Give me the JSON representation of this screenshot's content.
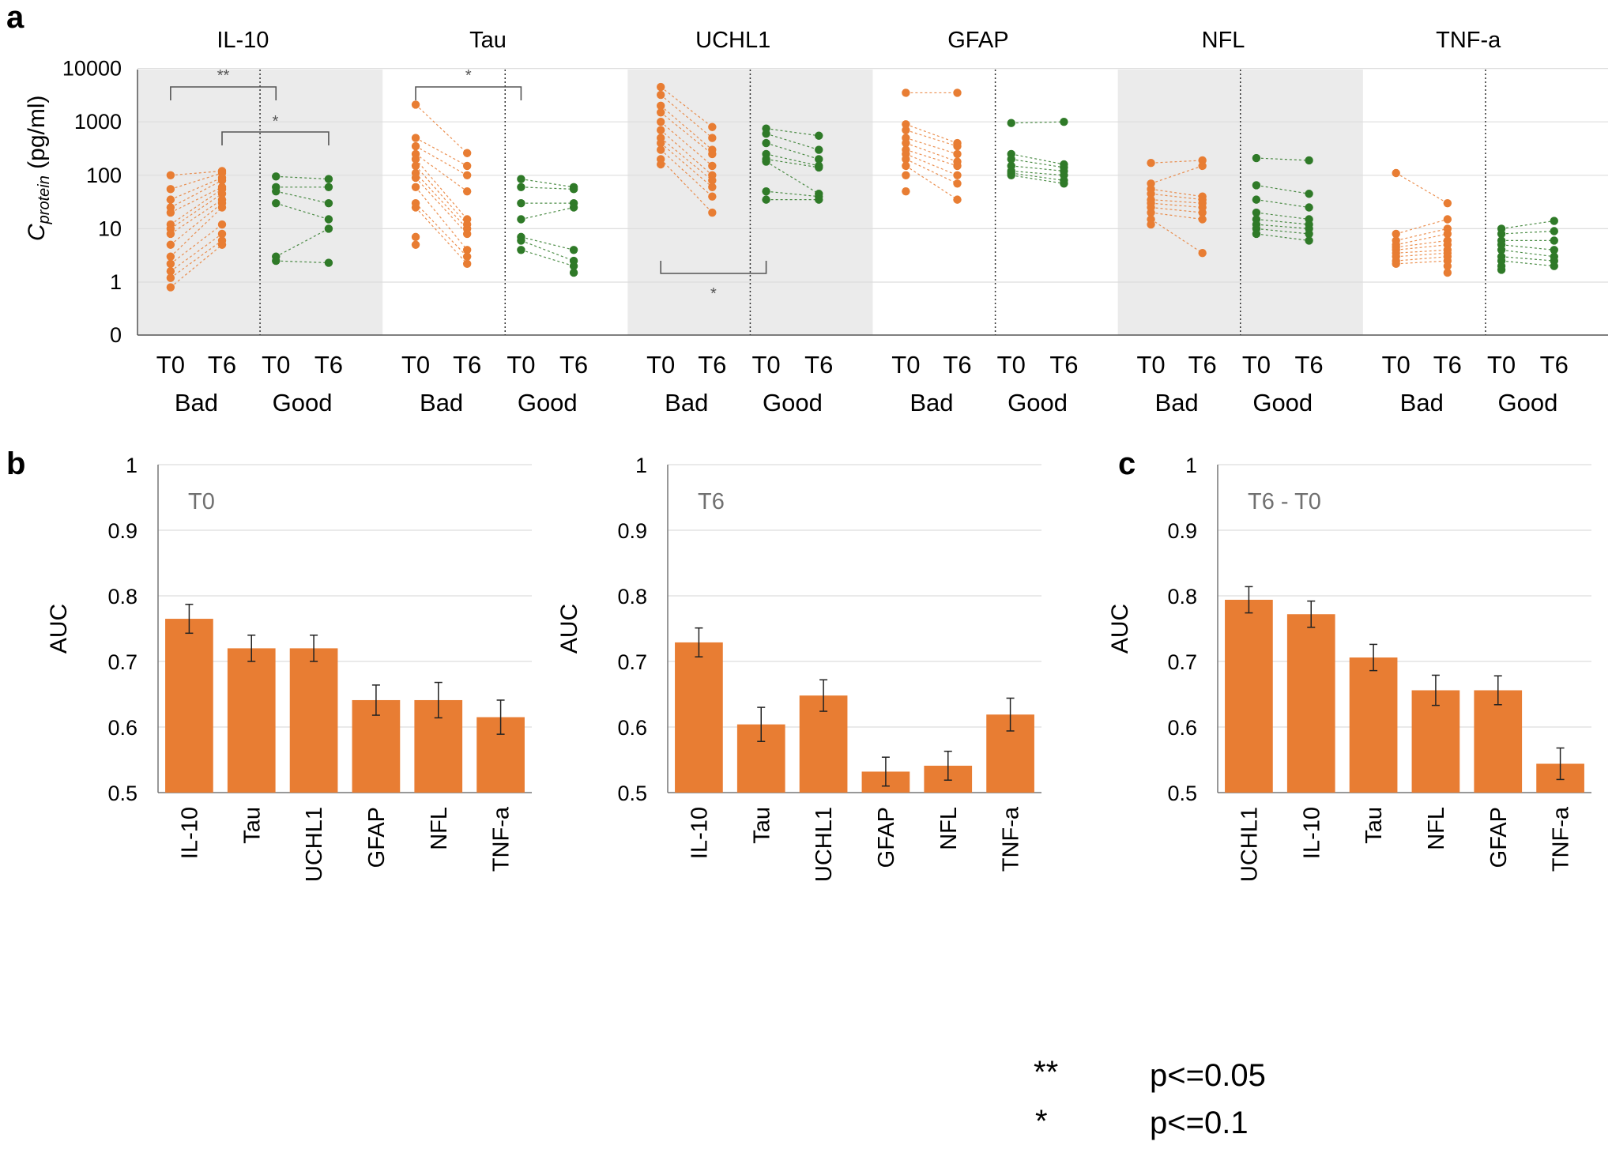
{
  "colors": {
    "bad": "#e87d33",
    "good": "#2f7a28",
    "bar": "#e87d33",
    "shade": "#ebebeb",
    "grid": "#dddddd"
  },
  "panel_letters": {
    "a": "a",
    "b": "b",
    "c": "c"
  },
  "legend": [
    {
      "symbol": "**",
      "text": "p<=0.05"
    },
    {
      "symbol": "*",
      "text": "p<=0.1"
    }
  ],
  "chart_data": [
    {
      "id": "a",
      "type": "scatter",
      "description_note": "paired points per marker, log scale",
      "ylabel": "C_protein (pg/ml)",
      "ylabel_main": "C",
      "ylabel_sub": "protein",
      "ylabel_rest": " (pg/ml)",
      "y_scale": "log",
      "y_ticks": [
        "0",
        "1",
        "10",
        "100",
        "1000",
        "10000"
      ],
      "time_labels": [
        "T0",
        "T6",
        "T0",
        "T6"
      ],
      "group_labels": [
        "Bad",
        "Good"
      ],
      "panels": [
        {
          "title": "IL-10",
          "shaded": true,
          "bad_t0": [
            100,
            55,
            35,
            25,
            20,
            12,
            10,
            8,
            5,
            3,
            2.2,
            1.6,
            1.2,
            0.8
          ],
          "bad_t6": [
            120,
            110,
            90,
            80,
            60,
            55,
            45,
            35,
            30,
            25,
            12,
            8,
            6,
            5
          ],
          "good_t0": [
            95,
            60,
            50,
            30,
            3,
            2.5
          ],
          "good_t6": [
            85,
            60,
            30,
            15,
            10,
            2.3
          ],
          "sig_marks": [
            {
              "label": "**",
              "from": "bad_t0",
              "to": "good_t0",
              "pos": "top"
            },
            {
              "label": "*",
              "from": "bad_t6",
              "to": "good_t6",
              "pos": "top2"
            }
          ]
        },
        {
          "title": "Tau",
          "shaded": false,
          "bad_t0": [
            2100,
            500,
            350,
            250,
            200,
            150,
            110,
            90,
            60,
            30,
            25,
            7,
            5
          ],
          "bad_t6": [
            260,
            150,
            100,
            50,
            15,
            12,
            10,
            8,
            4,
            3,
            2.2
          ],
          "good_t0": [
            85,
            60,
            30,
            15,
            7,
            6,
            4
          ],
          "good_t6": [
            60,
            55,
            30,
            25,
            4,
            2.5,
            2,
            1.5
          ],
          "sig_marks": [
            {
              "label": "*",
              "from": "bad_t0",
              "to": "good_t0",
              "pos": "top"
            }
          ]
        },
        {
          "title": "UCHL1",
          "shaded": true,
          "bad_t0": [
            4500,
            3200,
            2000,
            1500,
            1000,
            700,
            500,
            400,
            300,
            200,
            160
          ],
          "bad_t6": [
            800,
            500,
            300,
            250,
            150,
            100,
            80,
            60,
            40,
            20
          ],
          "good_t0": [
            750,
            600,
            400,
            250,
            200,
            180,
            50,
            35
          ],
          "good_t6": [
            550,
            300,
            200,
            150,
            140,
            45,
            40,
            35
          ],
          "sig_marks": [
            {
              "label": "*",
              "from": "bad_t0",
              "to": "good_t0",
              "pos": "bottom"
            }
          ]
        },
        {
          "title": "GFAP",
          "shaded": false,
          "bad_t0": [
            3500,
            900,
            700,
            500,
            400,
            300,
            250,
            200,
            150,
            100,
            50
          ],
          "bad_t6": [
            3500,
            400,
            350,
            250,
            180,
            150,
            100,
            70,
            35
          ],
          "good_t0": [
            950,
            250,
            200,
            150,
            120,
            110,
            100
          ],
          "good_t6": [
            1000,
            160,
            140,
            120,
            100,
            80,
            70
          ],
          "sig_marks": []
        },
        {
          "title": "NFL",
          "shaded": true,
          "bad_t0": [
            170,
            70,
            55,
            45,
            35,
            30,
            25,
            20,
            15,
            12
          ],
          "bad_t6": [
            190,
            150,
            40,
            35,
            30,
            25,
            20,
            15,
            3.5
          ],
          "good_t0": [
            210,
            65,
            35,
            20,
            15,
            12,
            10,
            8
          ],
          "good_t6": [
            190,
            45,
            25,
            15,
            12,
            10,
            8,
            6
          ],
          "sig_marks": []
        },
        {
          "title": "TNF-a",
          "shaded": false,
          "bad_t0": [
            110,
            8,
            6,
            5,
            4.5,
            4,
            3.5,
            3,
            2.5,
            2.2
          ],
          "bad_t6": [
            30,
            15,
            10,
            8,
            6,
            5,
            4,
            3.5,
            3,
            2.5,
            2,
            1.5
          ],
          "good_t0": [
            10,
            8,
            6,
            5,
            4,
            3,
            2.5,
            2,
            1.7
          ],
          "good_t6": [
            14,
            9,
            6,
            4,
            3,
            2.5,
            2
          ],
          "sig_marks": []
        }
      ]
    },
    {
      "id": "b-T0",
      "type": "bar",
      "inner_label": "T0",
      "ylabel": "AUC",
      "ylim": [
        0.5,
        1
      ],
      "y_ticks": [
        "0.5",
        "0.6",
        "0.7",
        "0.8",
        "0.9",
        "1"
      ],
      "categories": [
        "IL-10",
        "Tau",
        "UCHL1",
        "GFAP",
        "NFL",
        "TNF-a"
      ],
      "values": [
        0.765,
        0.72,
        0.72,
        0.641,
        0.641,
        0.615
      ],
      "errors": [
        0.022,
        0.02,
        0.02,
        0.023,
        0.027,
        0.026
      ]
    },
    {
      "id": "b-T6",
      "type": "bar",
      "inner_label": "T6",
      "ylabel": "AUC",
      "ylim": [
        0.5,
        1
      ],
      "y_ticks": [
        "0.5",
        "0.6",
        "0.7",
        "0.8",
        "0.9",
        "1"
      ],
      "categories": [
        "IL-10",
        "Tau",
        "UCHL1",
        "GFAP",
        "NFL",
        "TNF-a"
      ],
      "values": [
        0.729,
        0.604,
        0.648,
        0.532,
        0.541,
        0.619
      ],
      "errors": [
        0.022,
        0.026,
        0.024,
        0.022,
        0.022,
        0.025
      ]
    },
    {
      "id": "c",
      "type": "bar",
      "inner_label": "T6 - T0",
      "ylabel": "AUC",
      "ylim": [
        0.5,
        1
      ],
      "y_ticks": [
        "0.5",
        "0.6",
        "0.7",
        "0.8",
        "0.9",
        "1"
      ],
      "categories": [
        "UCHL1",
        "IL-10",
        "Tau",
        "NFL",
        "GFAP",
        "TNF-a"
      ],
      "values": [
        0.794,
        0.772,
        0.706,
        0.656,
        0.656,
        0.544
      ],
      "errors": [
        0.02,
        0.02,
        0.02,
        0.023,
        0.022,
        0.024
      ]
    }
  ]
}
